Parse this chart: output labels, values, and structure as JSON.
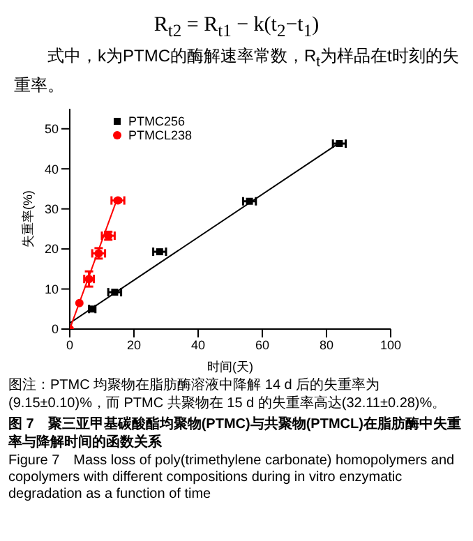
{
  "chart_data": {
    "type": "scatter",
    "title": "图 7　聚三亚甲基碳酸酯均聚物(PTMC)与共聚物(PTMCL)在脂肪酶中失重率与降解时间的函数关系",
    "subtitle": "Figure 7　Mass loss of poly(trimethylene carbonate) homopolymers and copolymers with different compositions during in vitro enzymatic degradation as a function of time",
    "xlabel": "时间(天)",
    "ylabel": "失重率(%)",
    "annotations": [
      "R$_{t2}$ = R$_{t1}$ − k(t$_{2}$−t$_{1}$)",
      "式中，k为PTMC的酶解速率常数，R$_{t}$为样品在t时刻的失重率。",
      "图注：PTMC 均聚物在脂肪酶溶液中降解 14 d 后的失重率为(9.15±0.10)%，而 PTMC 共聚物在 15 d 的失重率高达(32.11±0.28)%。"
    ],
    "xlim": [
      0,
      100
    ],
    "xticks": [
      0,
      20,
      40,
      60,
      80,
      100
    ],
    "ylim": [
      0,
      55
    ],
    "yticks": [
      0,
      10,
      20,
      30,
      40,
      50
    ],
    "legend": "top left",
    "series": [
      {
        "name": "PTMC256",
        "type": "scatter",
        "marker": "square",
        "color": "#000000",
        "x": [
          7,
          14,
          28,
          56,
          84
        ],
        "values": [
          5.0,
          9.2,
          19.3,
          31.9,
          46.3
        ],
        "xerrors": [
          1,
          2,
          2,
          2,
          2
        ]
      },
      {
        "name": "PTMCL238",
        "type": "scatter",
        "marker": "circle",
        "color": "#ff0000",
        "x": [
          0,
          3,
          6,
          9,
          12,
          15
        ],
        "values": [
          0,
          6.5,
          12.5,
          18.9,
          23.3,
          32.1
        ],
        "xerrors": [
          null,
          null,
          1.5,
          2,
          2,
          2
        ],
        "errors": [
          null,
          null,
          1.9,
          1.3,
          1,
          0.3
        ]
      },
      {
        "type": "line",
        "color": "#000000",
        "x": [
          0,
          84
        ],
        "values": [
          1.5,
          46.5
        ]
      },
      {
        "type": "line",
        "color": "#ff0000",
        "x": [
          0,
          15
        ],
        "values": [
          0,
          33
        ]
      }
    ]
  }
}
